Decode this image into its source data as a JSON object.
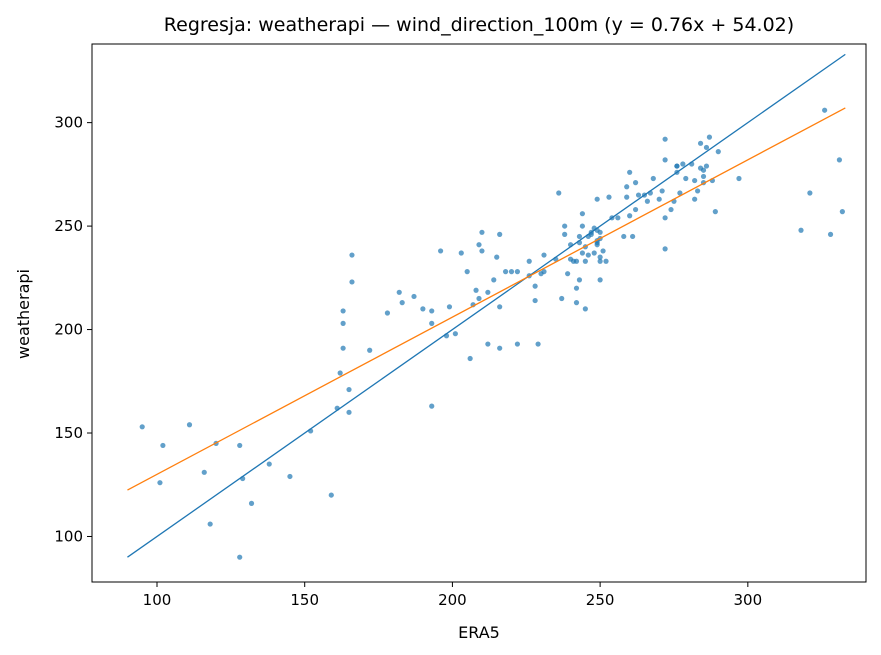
{
  "chart_data": {
    "type": "scatter",
    "title": "Regresja: weatherapi — wind_direction_100m (y = 0.76x + 54.02)",
    "xlabel": "ERA5",
    "ylabel": "weatherapi",
    "xlim": [
      78,
      340
    ],
    "ylim": [
      78,
      338
    ],
    "xticks": [
      100,
      150,
      200,
      250,
      300
    ],
    "yticks": [
      100,
      150,
      200,
      250,
      300
    ],
    "grid": false,
    "colors": {
      "points": "#1f77b4",
      "identity_line": "#1f77b4",
      "regression_line": "#ff7f0e"
    },
    "lines": [
      {
        "kind": "identity",
        "x": [
          90,
          333
        ],
        "y": [
          90,
          333
        ]
      },
      {
        "kind": "regression",
        "slope": 0.76,
        "intercept": 54.02,
        "x": [
          90,
          333
        ]
      }
    ],
    "points": [
      [
        95,
        153
      ],
      [
        101,
        126
      ],
      [
        102,
        144
      ],
      [
        111,
        154
      ],
      [
        116,
        131
      ],
      [
        118,
        106
      ],
      [
        120,
        145
      ],
      [
        128,
        144
      ],
      [
        128,
        90
      ],
      [
        129,
        128
      ],
      [
        132,
        116
      ],
      [
        138,
        135
      ],
      [
        145,
        129
      ],
      [
        152,
        151
      ],
      [
        159,
        120
      ],
      [
        161,
        162
      ],
      [
        162,
        179
      ],
      [
        163,
        191
      ],
      [
        163,
        203
      ],
      [
        163,
        209
      ],
      [
        165,
        160
      ],
      [
        165,
        171
      ],
      [
        166,
        223
      ],
      [
        166,
        236
      ],
      [
        172,
        190
      ],
      [
        178,
        208
      ],
      [
        182,
        218
      ],
      [
        183,
        213
      ],
      [
        187,
        216
      ],
      [
        190,
        210
      ],
      [
        193,
        163
      ],
      [
        193,
        203
      ],
      [
        193,
        209
      ],
      [
        196,
        238
      ],
      [
        198,
        197
      ],
      [
        199,
        211
      ],
      [
        201,
        198
      ],
      [
        203,
        237
      ],
      [
        205,
        228
      ],
      [
        206,
        186
      ],
      [
        207,
        212
      ],
      [
        208,
        219
      ],
      [
        209,
        215
      ],
      [
        209,
        241
      ],
      [
        210,
        238
      ],
      [
        210,
        247
      ],
      [
        212,
        218
      ],
      [
        212,
        193
      ],
      [
        214,
        224
      ],
      [
        215,
        235
      ],
      [
        216,
        191
      ],
      [
        216,
        211
      ],
      [
        216,
        246
      ],
      [
        218,
        228
      ],
      [
        220,
        228
      ],
      [
        222,
        193
      ],
      [
        222,
        228
      ],
      [
        226,
        226
      ],
      [
        226,
        233
      ],
      [
        228,
        214
      ],
      [
        228,
        221
      ],
      [
        229,
        193
      ],
      [
        230,
        227
      ],
      [
        231,
        236
      ],
      [
        231,
        228
      ],
      [
        235,
        234
      ],
      [
        236,
        266
      ],
      [
        237,
        215
      ],
      [
        238,
        246
      ],
      [
        238,
        250
      ],
      [
        239,
        227
      ],
      [
        240,
        234
      ],
      [
        240,
        241
      ],
      [
        241,
        233
      ],
      [
        242,
        213
      ],
      [
        242,
        220
      ],
      [
        242,
        233
      ],
      [
        243,
        245
      ],
      [
        243,
        242
      ],
      [
        243,
        224
      ],
      [
        244,
        237
      ],
      [
        244,
        250
      ],
      [
        244,
        256
      ],
      [
        245,
        210
      ],
      [
        245,
        233
      ],
      [
        245,
        240
      ],
      [
        246,
        236
      ],
      [
        246,
        245
      ],
      [
        247,
        247
      ],
      [
        247,
        246
      ],
      [
        248,
        249
      ],
      [
        248,
        237
      ],
      [
        249,
        243
      ],
      [
        249,
        242
      ],
      [
        249,
        241
      ],
      [
        249,
        248
      ],
      [
        249,
        263
      ],
      [
        250,
        244
      ],
      [
        250,
        247
      ],
      [
        250,
        235
      ],
      [
        250,
        233
      ],
      [
        250,
        224
      ],
      [
        251,
        238
      ],
      [
        252,
        233
      ],
      [
        253,
        264
      ],
      [
        254,
        254
      ],
      [
        256,
        254
      ],
      [
        258,
        245
      ],
      [
        259,
        264
      ],
      [
        259,
        269
      ],
      [
        260,
        276
      ],
      [
        260,
        255
      ],
      [
        261,
        245
      ],
      [
        262,
        258
      ],
      [
        262,
        271
      ],
      [
        263,
        265
      ],
      [
        265,
        265
      ],
      [
        266,
        262
      ],
      [
        267,
        266
      ],
      [
        268,
        273
      ],
      [
        270,
        263
      ],
      [
        271,
        267
      ],
      [
        272,
        254
      ],
      [
        272,
        282
      ],
      [
        272,
        292
      ],
      [
        272,
        239
      ],
      [
        274,
        258
      ],
      [
        275,
        262
      ],
      [
        276,
        279
      ],
      [
        276,
        276
      ],
      [
        276,
        279
      ],
      [
        277,
        266
      ],
      [
        278,
        280
      ],
      [
        279,
        273
      ],
      [
        281,
        280
      ],
      [
        282,
        272
      ],
      [
        282,
        263
      ],
      [
        283,
        267
      ],
      [
        284,
        278
      ],
      [
        284,
        290
      ],
      [
        285,
        271
      ],
      [
        285,
        277
      ],
      [
        285,
        274
      ],
      [
        286,
        279
      ],
      [
        286,
        288
      ],
      [
        287,
        293
      ],
      [
        288,
        272
      ],
      [
        289,
        257
      ],
      [
        290,
        286
      ],
      [
        297,
        273
      ],
      [
        318,
        248
      ],
      [
        321,
        266
      ],
      [
        326,
        306
      ],
      [
        328,
        246
      ],
      [
        331,
        282
      ],
      [
        332,
        257
      ]
    ]
  }
}
